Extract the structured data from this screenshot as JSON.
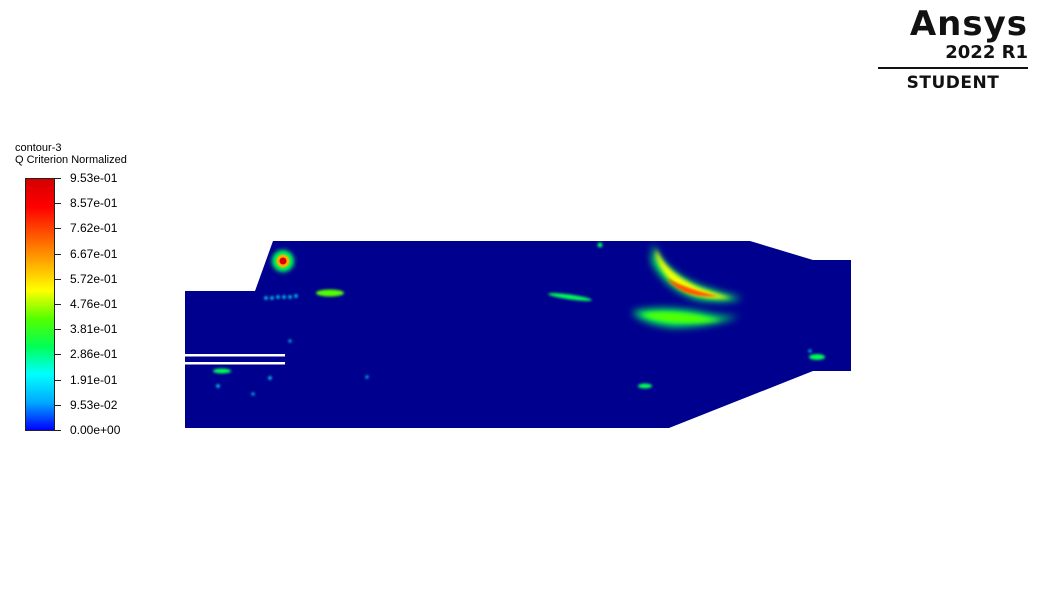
{
  "logo": {
    "name": "Ansys",
    "release": "2022 R1",
    "edition": "STUDENT"
  },
  "legend": {
    "name": "contour-3",
    "quantity": "Q Criterion Normalized",
    "labels": [
      "9.53e-01",
      "8.57e-01",
      "7.62e-01",
      "6.67e-01",
      "5.72e-01",
      "4.76e-01",
      "3.81e-01",
      "2.86e-01",
      "1.91e-01",
      "9.53e-02",
      "0.00e+00"
    ]
  },
  "colors": {
    "background_field": "#00008f",
    "colormap": [
      "#0000ff",
      "#00aaff",
      "#00ffff",
      "#00ff55",
      "#55ff00",
      "#ffff00",
      "#ffaa00",
      "#ff5500",
      "#ff0000",
      "#d40000"
    ],
    "inlet_lines": "#ffffff"
  },
  "chart_data": {
    "type": "heatmap",
    "colormap": "rainbow",
    "range": [
      0.0,
      0.953
    ],
    "features": [
      {
        "name": "vortex",
        "value": 0.95
      },
      {
        "name": "streak",
        "value": 0.45
      },
      {
        "name": "streak",
        "value": 0.3
      },
      {
        "name": "wake",
        "value": 0.75
      },
      {
        "name": "spot",
        "value": 0.35
      },
      {
        "name": "spot",
        "value": 0.3
      }
    ]
  }
}
